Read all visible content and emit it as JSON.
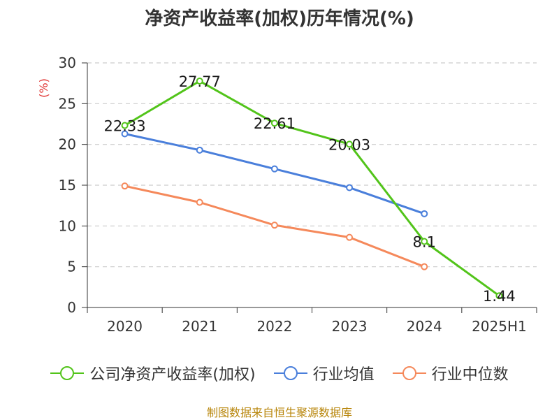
{
  "chart_data": {
    "type": "line",
    "title": "净资产收益率(加权)历年情况(%)",
    "ylabel": "(%)",
    "xlabel": "",
    "ylim": [
      0,
      30
    ],
    "yticks": [
      0,
      5,
      10,
      15,
      20,
      25,
      30
    ],
    "grid": true,
    "legend_position": "bottom",
    "categories": [
      "2020",
      "2021",
      "2022",
      "2023",
      "2024",
      "2025H1"
    ],
    "series": [
      {
        "name": "公司净资产收益率(加权)",
        "color": "#52c41a",
        "values": [
          22.33,
          27.77,
          22.61,
          20.03,
          8.1,
          1.44
        ],
        "labels": true
      },
      {
        "name": "行业均值",
        "color": "#4a7fdb",
        "values": [
          21.3,
          19.3,
          17.0,
          14.7,
          11.5,
          null
        ],
        "labels": false
      },
      {
        "name": "行业中位数",
        "color": "#f5895b",
        "values": [
          14.9,
          12.9,
          10.1,
          8.6,
          5.0,
          null
        ],
        "labels": false
      }
    ]
  },
  "source": "制图数据来自恒生聚源数据库",
  "colors": {
    "title": "#333333",
    "axis": "#333333",
    "grid": "#cccccc",
    "ylabel": "#e0302e",
    "source": "#b8860b"
  }
}
